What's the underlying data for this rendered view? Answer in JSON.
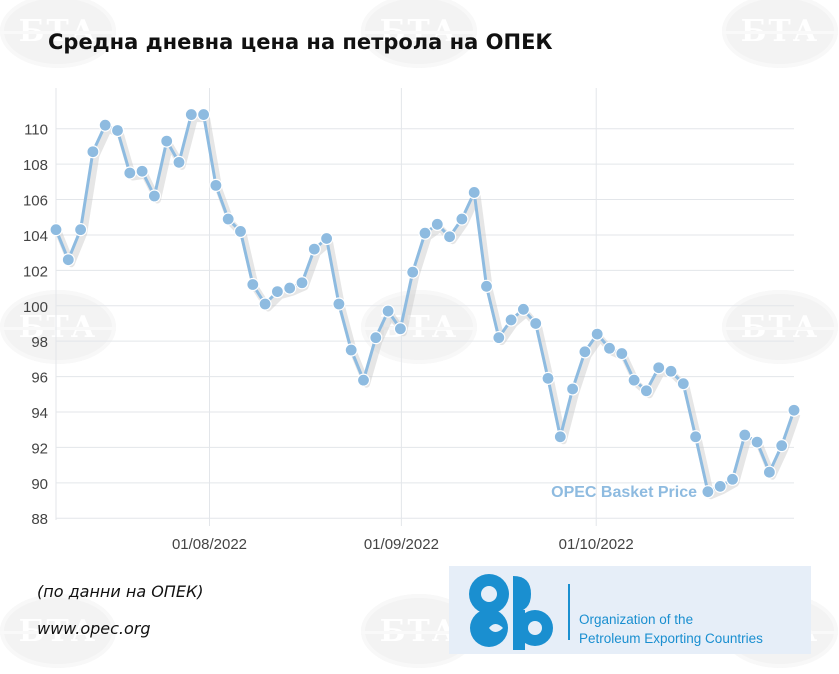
{
  "title": "Средна дневна цена на петрола на ОПЕК",
  "source_note": "(по данни на ОПЕК)",
  "source_url": "www.opec.org",
  "logo": {
    "org_line1": "Organization of the",
    "org_line2": "Petroleum Exporting Countries",
    "color": "#1a8fd0"
  },
  "watermark_text": "БТА",
  "chart_data": {
    "type": "line",
    "series": [
      {
        "name": "OPEC Basket Price",
        "color": "#8ebbe0",
        "values": [
          104.3,
          102.6,
          104.3,
          108.7,
          110.2,
          109.9,
          107.5,
          107.6,
          106.2,
          109.3,
          108.1,
          110.8,
          110.8,
          106.8,
          104.9,
          104.2,
          101.2,
          100.1,
          100.8,
          101.0,
          101.3,
          103.2,
          103.8,
          100.1,
          97.5,
          95.8,
          98.2,
          99.7,
          98.7,
          101.9,
          104.1,
          104.6,
          103.9,
          104.9,
          106.4,
          101.1,
          98.2,
          99.2,
          99.8,
          99.0,
          95.9,
          92.6,
          95.3,
          97.4,
          98.4,
          97.6,
          97.3,
          95.8,
          95.2,
          96.5,
          96.3,
          95.6,
          92.6,
          89.5,
          89.8,
          90.2,
          92.7,
          92.3,
          90.6,
          92.1,
          94.1
        ]
      }
    ],
    "x_ticks": [
      "01/08/2022",
      "01/09/2022",
      "01/10/2022"
    ],
    "x_tick_positions": [
      20.8,
      46.8,
      73.2
    ],
    "y_ticks": [
      88,
      90,
      92,
      94,
      96,
      98,
      100,
      102,
      104,
      106,
      108,
      110
    ],
    "ylim": [
      87.9,
      112.3
    ],
    "xlabel": "",
    "ylabel": "",
    "grid": true
  }
}
